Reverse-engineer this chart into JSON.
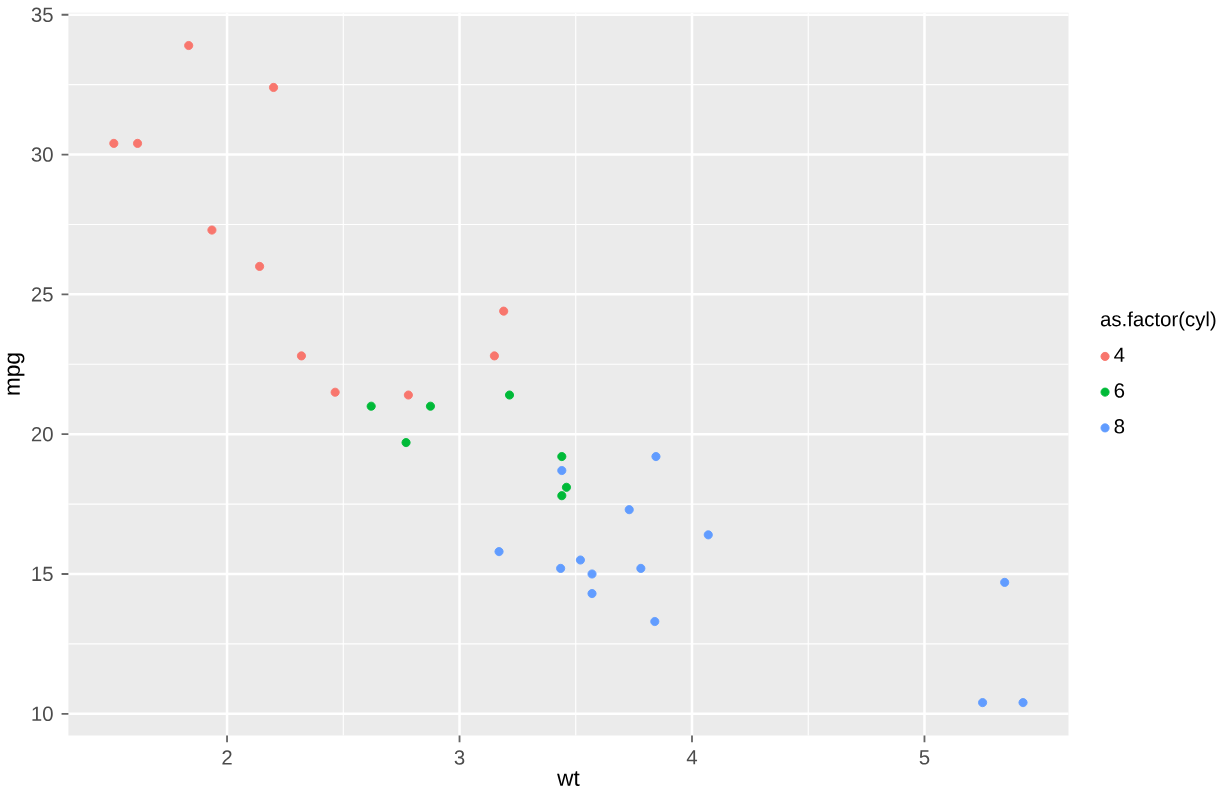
{
  "chart_data": {
    "type": "scatter",
    "xlabel": "wt",
    "ylabel": "mpg",
    "legend_title": "as.factor(cyl)",
    "legend": "right",
    "grid": true,
    "xlim": [
      1.3175,
      5.6195
    ],
    "ylim": [
      9.225,
      35.075
    ],
    "xticks": [
      2,
      3,
      4,
      5
    ],
    "yticks": [
      10,
      15,
      20,
      25,
      30,
      35
    ],
    "series": [
      {
        "name": "4",
        "color": "#f8766d",
        "x": [
          2.32,
          3.19,
          3.15,
          2.2,
          1.615,
          1.835,
          2.465,
          1.935,
          2.14,
          1.513,
          2.78
        ],
        "values": [
          22.8,
          24.4,
          22.8,
          32.4,
          30.4,
          33.9,
          21.5,
          27.3,
          26.0,
          30.4,
          21.4
        ]
      },
      {
        "name": "6",
        "color": "#00ba38",
        "x": [
          2.62,
          2.875,
          3.215,
          3.46,
          3.44,
          3.44,
          2.77
        ],
        "values": [
          21.0,
          21.0,
          21.4,
          18.1,
          19.2,
          17.8,
          19.7
        ]
      },
      {
        "name": "8",
        "color": "#619cff",
        "x": [
          3.44,
          3.57,
          4.07,
          3.73,
          3.78,
          5.25,
          5.424,
          5.345,
          3.52,
          3.435,
          3.84,
          3.845,
          3.17,
          3.57
        ],
        "values": [
          18.7,
          14.3,
          16.4,
          17.3,
          15.2,
          10.4,
          10.4,
          14.7,
          15.5,
          15.2,
          13.3,
          19.2,
          15.8,
          15.0
        ]
      }
    ]
  }
}
